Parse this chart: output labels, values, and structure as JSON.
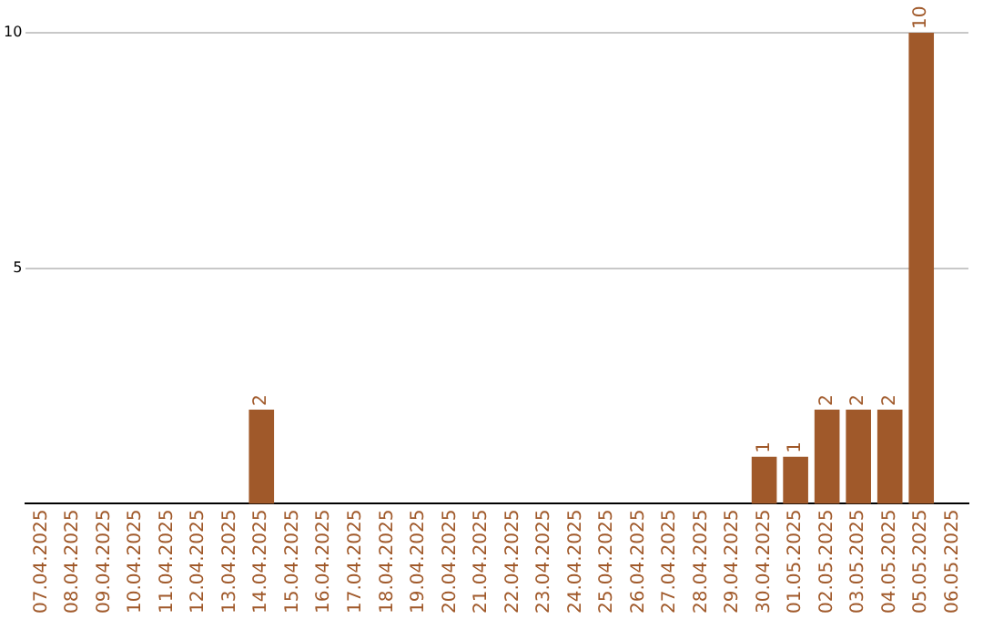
{
  "chart_data": {
    "type": "bar",
    "categories": [
      "07.04.2025",
      "08.04.2025",
      "09.04.2025",
      "10.04.2025",
      "11.04.2025",
      "12.04.2025",
      "13.04.2025",
      "14.04.2025",
      "15.04.2025",
      "16.04.2025",
      "17.04.2025",
      "18.04.2025",
      "19.04.2025",
      "20.04.2025",
      "21.04.2025",
      "22.04.2025",
      "23.04.2025",
      "24.04.2025",
      "25.04.2025",
      "26.04.2025",
      "27.04.2025",
      "28.04.2025",
      "29.04.2025",
      "30.04.2025",
      "01.05.2025",
      "02.05.2025",
      "03.05.2025",
      "04.05.2025",
      "05.05.2025",
      "06.05.2025"
    ],
    "values": [
      0,
      0,
      0,
      0,
      0,
      0,
      0,
      2,
      0,
      0,
      0,
      0,
      0,
      0,
      0,
      0,
      0,
      0,
      0,
      0,
      0,
      0,
      0,
      1,
      1,
      2,
      2,
      2,
      10,
      0
    ],
    "value_labels": [
      null,
      null,
      null,
      null,
      null,
      null,
      null,
      "2",
      null,
      null,
      null,
      null,
      null,
      null,
      null,
      null,
      null,
      null,
      null,
      null,
      null,
      null,
      null,
      "1",
      "1",
      "2",
      "2",
      "2",
      "10",
      null
    ],
    "color": "#a0592a",
    "ylim": [
      0,
      10
    ],
    "yticks": [
      5,
      10
    ],
    "grid": "y",
    "legend": false
  }
}
